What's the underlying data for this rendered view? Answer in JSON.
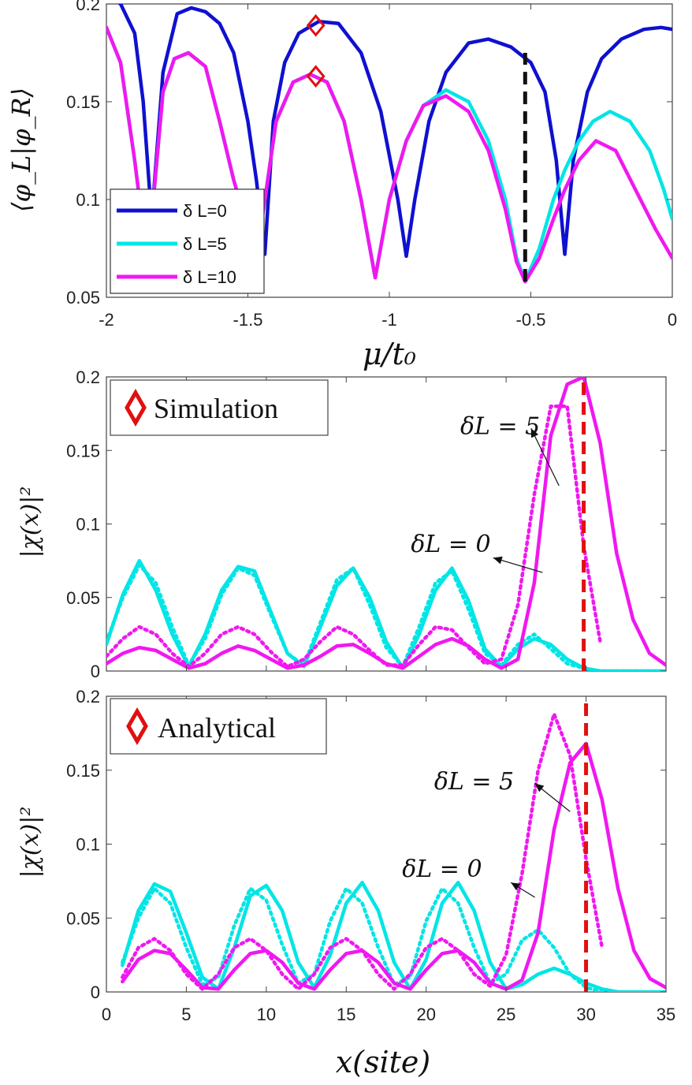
{
  "chart_data": [
    {
      "type": "line",
      "id": "top",
      "xlabel": "μ/t₀",
      "ylabel": "⟨φ_L|φ_R⟩",
      "xlim": [
        -2,
        0
      ],
      "ylim": [
        0.05,
        0.2
      ],
      "xticks": [
        -2,
        -1.5,
        -1,
        -0.5,
        0
      ],
      "xtick_labels": [
        "-2",
        "-1.5",
        "-1",
        "-0.5",
        "0"
      ],
      "yticks": [
        0.05,
        0.1,
        0.15,
        0.2
      ],
      "ytick_labels": [
        "0.05",
        "0.1",
        "0.15",
        "0.2"
      ],
      "legend_position": "bottom-left",
      "series": [
        {
          "name": "δ L=0",
          "color": "#1010d0",
          "x": [
            -2.0,
            -1.95,
            -1.9,
            -1.87,
            -1.84,
            -1.8,
            -1.75,
            -1.7,
            -1.65,
            -1.6,
            -1.55,
            -1.5,
            -1.47,
            -1.44,
            -1.41,
            -1.37,
            -1.32,
            -1.25,
            -1.18,
            -1.1,
            -1.03,
            -0.97,
            -0.94,
            -0.91,
            -0.86,
            -0.8,
            -0.72,
            -0.65,
            -0.57,
            -0.5,
            -0.45,
            -0.41,
            -0.38,
            -0.35,
            -0.3,
            -0.25,
            -0.18,
            -0.1,
            -0.04,
            0.0
          ],
          "y": [
            0.205,
            0.2,
            0.185,
            0.15,
            0.09,
            0.165,
            0.195,
            0.198,
            0.196,
            0.19,
            0.175,
            0.14,
            0.11,
            0.072,
            0.14,
            0.17,
            0.185,
            0.191,
            0.19,
            0.175,
            0.145,
            0.1,
            0.071,
            0.1,
            0.14,
            0.165,
            0.18,
            0.182,
            0.178,
            0.17,
            0.155,
            0.12,
            0.072,
            0.12,
            0.155,
            0.172,
            0.182,
            0.187,
            0.188,
            0.187
          ]
        },
        {
          "name": "δ L=5",
          "color": "#00e5e5",
          "x": [
            -2.0,
            -1.95,
            -1.9,
            -1.87,
            -1.84,
            -1.8,
            -1.76,
            -1.71,
            -1.65,
            -1.6,
            -1.55,
            -1.5,
            -1.45,
            -1.4,
            -1.34,
            -1.28,
            -1.22,
            -1.16,
            -1.1,
            -1.05,
            -1.0,
            -0.94,
            -0.88,
            -0.8,
            -0.72,
            -0.65,
            -0.59,
            -0.55,
            -0.52,
            -0.47,
            -0.42,
            -0.38,
            -0.33,
            -0.28,
            -0.22,
            -0.15,
            -0.08,
            -0.03,
            0.0
          ],
          "y": [
            0.188,
            0.17,
            0.12,
            0.085,
            0.09,
            0.155,
            0.172,
            0.175,
            0.168,
            0.14,
            0.11,
            0.085,
            0.09,
            0.14,
            0.16,
            0.164,
            0.16,
            0.14,
            0.1,
            0.06,
            0.1,
            0.13,
            0.148,
            0.156,
            0.15,
            0.13,
            0.1,
            0.07,
            0.058,
            0.075,
            0.1,
            0.115,
            0.13,
            0.14,
            0.145,
            0.14,
            0.125,
            0.105,
            0.09
          ]
        },
        {
          "name": "δ L=10",
          "color": "#f018f0",
          "x": [
            -2.0,
            -1.95,
            -1.9,
            -1.87,
            -1.84,
            -1.8,
            -1.76,
            -1.71,
            -1.65,
            -1.6,
            -1.55,
            -1.5,
            -1.45,
            -1.4,
            -1.34,
            -1.28,
            -1.22,
            -1.16,
            -1.1,
            -1.05,
            -1.0,
            -0.94,
            -0.88,
            -0.8,
            -0.72,
            -0.65,
            -0.59,
            -0.55,
            -0.52,
            -0.47,
            -0.42,
            -0.38,
            -0.33,
            -0.27,
            -0.2,
            -0.13,
            -0.06,
            0.0
          ],
          "y": [
            0.188,
            0.17,
            0.12,
            0.085,
            0.09,
            0.155,
            0.172,
            0.175,
            0.168,
            0.14,
            0.11,
            0.085,
            0.09,
            0.14,
            0.16,
            0.164,
            0.16,
            0.14,
            0.1,
            0.06,
            0.1,
            0.13,
            0.148,
            0.153,
            0.145,
            0.125,
            0.095,
            0.068,
            0.058,
            0.07,
            0.09,
            0.105,
            0.12,
            0.13,
            0.125,
            0.105,
            0.085,
            0.07
          ]
        }
      ],
      "markers": [
        {
          "x": -1.26,
          "y": 0.189,
          "shape": "diamond",
          "color": "#e01010"
        },
        {
          "x": -1.26,
          "y": 0.163,
          "shape": "diamond",
          "color": "#e01010"
        }
      ],
      "vline": {
        "x": -0.52,
        "y0": 0.058,
        "y1": 0.175,
        "color": "#111111",
        "style": "dashed"
      }
    },
    {
      "type": "line",
      "id": "middle",
      "ylabel": "|χ(x)|²",
      "xlim": [
        1,
        35
      ],
      "ylim": [
        0,
        0.2
      ],
      "yticks": [
        0,
        0.05,
        0.1,
        0.15,
        0.2
      ],
      "ytick_labels": [
        "0",
        "0.05",
        "0.1",
        "0.15",
        "0.2"
      ],
      "box_label": "Simulation",
      "annotations": [
        {
          "text": "δL = 5",
          "x": 22.5,
          "y": 0.161,
          "arrow_from": [
            28.5,
            0.126
          ],
          "arrow_to": [
            26.8,
            0.165
          ]
        },
        {
          "text": "δL = 0",
          "x": 19.5,
          "y": 0.081,
          "arrow_from": [
            27.5,
            0.067
          ],
          "arrow_to": [
            24.5,
            0.077
          ]
        }
      ],
      "vline": {
        "x": 30,
        "color": "#e01010",
        "style": "dashed"
      },
      "series": [
        {
          "name": "cyan solid",
          "color": "#00e5e5",
          "dash": false,
          "x": [
            1,
            2,
            3,
            4,
            5,
            6,
            7,
            8,
            9,
            10,
            11,
            12,
            13,
            14,
            15,
            16,
            17,
            18,
            19,
            20,
            21,
            22,
            23,
            24,
            25,
            26,
            27,
            28,
            29,
            30,
            31,
            32,
            33,
            34,
            35
          ],
          "y": [
            0.018,
            0.052,
            0.075,
            0.055,
            0.025,
            0.003,
            0.025,
            0.055,
            0.071,
            0.068,
            0.04,
            0.012,
            0.003,
            0.03,
            0.058,
            0.07,
            0.05,
            0.02,
            0.002,
            0.025,
            0.055,
            0.07,
            0.048,
            0.015,
            0.003,
            0.015,
            0.022,
            0.018,
            0.008,
            0.002,
            0.0,
            0.0,
            0.0,
            0.0,
            0.0
          ]
        },
        {
          "name": "cyan dotted",
          "color": "#00e5e5",
          "dash": true,
          "x": [
            1,
            2,
            3,
            4,
            5,
            6,
            7,
            8,
            9,
            10,
            11,
            12,
            13,
            14,
            15,
            16,
            17,
            18,
            19,
            20,
            21,
            22,
            23,
            24,
            25,
            26,
            27,
            28,
            29,
            30,
            31,
            32,
            33,
            34,
            35
          ],
          "y": [
            0.02,
            0.05,
            0.072,
            0.06,
            0.03,
            0.004,
            0.022,
            0.052,
            0.07,
            0.065,
            0.038,
            0.012,
            0.004,
            0.033,
            0.062,
            0.07,
            0.045,
            0.016,
            0.003,
            0.03,
            0.06,
            0.068,
            0.042,
            0.012,
            0.004,
            0.018,
            0.025,
            0.015,
            0.005,
            0.002,
            0.0,
            0.0,
            0.0,
            0.0,
            0.0
          ]
        },
        {
          "name": "magenta solid",
          "color": "#f018f0",
          "dash": false,
          "x": [
            1,
            2,
            3,
            4,
            5,
            6,
            7,
            8,
            9,
            10,
            11,
            12,
            13,
            14,
            15,
            16,
            17,
            18,
            19,
            20,
            21,
            22,
            23,
            24,
            25,
            26,
            27,
            28,
            29,
            30,
            31,
            32,
            33,
            34,
            35
          ],
          "y": [
            0.005,
            0.012,
            0.016,
            0.014,
            0.008,
            0.002,
            0.005,
            0.012,
            0.017,
            0.014,
            0.008,
            0.002,
            0.004,
            0.01,
            0.017,
            0.018,
            0.012,
            0.005,
            0.002,
            0.01,
            0.018,
            0.022,
            0.017,
            0.008,
            0.002,
            0.008,
            0.06,
            0.16,
            0.195,
            0.2,
            0.155,
            0.08,
            0.035,
            0.012,
            0.004
          ]
        },
        {
          "name": "magenta dotted",
          "color": "#f018f0",
          "dash": true,
          "x": [
            1,
            2,
            3,
            4,
            5,
            6,
            7,
            8,
            9,
            10,
            11,
            12,
            13,
            14,
            15,
            16,
            17,
            18,
            19,
            20,
            21,
            22,
            23,
            24,
            25,
            26,
            27,
            28,
            29,
            30,
            31
          ],
          "y": [
            0.01,
            0.022,
            0.03,
            0.025,
            0.012,
            0.003,
            0.012,
            0.025,
            0.03,
            0.025,
            0.013,
            0.003,
            0.008,
            0.02,
            0.03,
            0.025,
            0.014,
            0.004,
            0.004,
            0.018,
            0.03,
            0.028,
            0.016,
            0.005,
            0.008,
            0.045,
            0.12,
            0.18,
            0.18,
            0.085,
            0.02
          ]
        }
      ]
    },
    {
      "type": "line",
      "id": "bottom",
      "xlabel": "x(site)",
      "ylabel": "|χ(x)|²",
      "xlim": [
        0,
        35
      ],
      "ylim": [
        0,
        0.2
      ],
      "xticks": [
        0,
        5,
        10,
        15,
        20,
        25,
        30,
        35
      ],
      "xtick_labels": [
        "0",
        "5",
        "10",
        "15",
        "20",
        "25",
        "30",
        "35"
      ],
      "yticks": [
        0,
        0.05,
        0.1,
        0.15,
        0.2
      ],
      "ytick_labels": [
        "0",
        "0.05",
        "0.1",
        "0.15",
        "0.2"
      ],
      "box_label": "Analytical",
      "annotations": [
        {
          "text": "δL = 5",
          "x": 20.5,
          "y": 0.137,
          "arrow_from": [
            29.0,
            0.122
          ],
          "arrow_to": [
            26.8,
            0.141
          ]
        },
        {
          "text": "δL = 0",
          "x": 18.5,
          "y": 0.078,
          "arrow_from": [
            26.8,
            0.064
          ],
          "arrow_to": [
            25.3,
            0.074
          ]
        }
      ],
      "vline": {
        "x": 30,
        "color": "#e01010",
        "style": "dashed"
      },
      "series": [
        {
          "name": "cyan solid",
          "color": "#00e5e5",
          "dash": false,
          "x": [
            1,
            2,
            3,
            4,
            5,
            6,
            7,
            8,
            9,
            10,
            11,
            12,
            13,
            14,
            15,
            16,
            17,
            18,
            19,
            20,
            21,
            22,
            23,
            24,
            25,
            26,
            27,
            28,
            29,
            30,
            31,
            32,
            33,
            34,
            35
          ],
          "y": [
            0.018,
            0.055,
            0.073,
            0.068,
            0.04,
            0.01,
            0.002,
            0.03,
            0.065,
            0.072,
            0.055,
            0.02,
            0.003,
            0.025,
            0.06,
            0.074,
            0.055,
            0.02,
            0.002,
            0.022,
            0.06,
            0.074,
            0.055,
            0.02,
            0.002,
            0.005,
            0.012,
            0.016,
            0.012,
            0.006,
            0.002,
            0.0,
            0.0,
            0.0,
            0.0
          ]
        },
        {
          "name": "cyan dotted",
          "color": "#00e5e5",
          "dash": true,
          "x": [
            1,
            2,
            3,
            4,
            5,
            6,
            7,
            8,
            9,
            10,
            11,
            12,
            13,
            14,
            15,
            16,
            17,
            18,
            19,
            20,
            21,
            22,
            23,
            24,
            25,
            26,
            27,
            28,
            29,
            30,
            31
          ],
          "y": [
            0.02,
            0.05,
            0.07,
            0.06,
            0.03,
            0.005,
            0.01,
            0.045,
            0.07,
            0.062,
            0.032,
            0.006,
            0.012,
            0.048,
            0.07,
            0.06,
            0.03,
            0.005,
            0.01,
            0.048,
            0.07,
            0.06,
            0.03,
            0.006,
            0.012,
            0.035,
            0.042,
            0.03,
            0.012,
            0.003,
            0.0
          ]
        },
        {
          "name": "magenta solid",
          "color": "#f018f0",
          "dash": false,
          "x": [
            1,
            2,
            3,
            4,
            5,
            6,
            7,
            8,
            9,
            10,
            11,
            12,
            13,
            14,
            15,
            16,
            17,
            18,
            19,
            20,
            21,
            22,
            23,
            24,
            25,
            26,
            27,
            28,
            29,
            30,
            31,
            32,
            33,
            34,
            35
          ],
          "y": [
            0.007,
            0.022,
            0.028,
            0.026,
            0.015,
            0.003,
            0.002,
            0.015,
            0.026,
            0.028,
            0.02,
            0.006,
            0.002,
            0.015,
            0.026,
            0.028,
            0.02,
            0.006,
            0.002,
            0.015,
            0.026,
            0.028,
            0.02,
            0.006,
            0.002,
            0.008,
            0.04,
            0.11,
            0.155,
            0.168,
            0.13,
            0.07,
            0.028,
            0.009,
            0.003
          ]
        },
        {
          "name": "magenta dotted",
          "color": "#f018f0",
          "dash": true,
          "x": [
            1,
            2,
            3,
            4,
            5,
            6,
            7,
            8,
            9,
            10,
            11,
            12,
            13,
            14,
            15,
            16,
            17,
            18,
            19,
            20,
            21,
            22,
            23,
            24,
            25,
            26,
            27,
            28,
            29,
            30,
            31
          ],
          "y": [
            0.01,
            0.03,
            0.036,
            0.028,
            0.012,
            0.002,
            0.012,
            0.03,
            0.036,
            0.028,
            0.012,
            0.002,
            0.012,
            0.03,
            0.036,
            0.028,
            0.012,
            0.002,
            0.012,
            0.03,
            0.036,
            0.028,
            0.012,
            0.004,
            0.025,
            0.08,
            0.15,
            0.188,
            0.16,
            0.09,
            0.03
          ]
        }
      ]
    }
  ]
}
